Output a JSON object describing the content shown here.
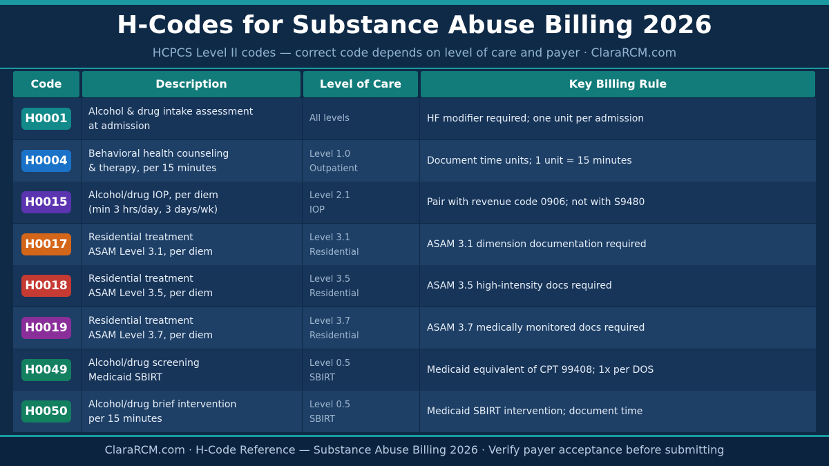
{
  "title": "H-Codes for Substance Abuse Billing 2026",
  "subtitle": "HCPCS Level II codes — correct code depends on level of care and payer  ·  ClaraRCM.com",
  "table": {
    "headers": [
      "Code",
      "Description",
      "Level of Care",
      "Key Billing Rule"
    ],
    "rows": [
      {
        "code": "H0001",
        "color": "#138a8a",
        "desc1": "Alcohol & drug intake assessment",
        "desc2": "at admission",
        "level1": "All levels",
        "level2": "",
        "rule": "HF modifier required; one unit per admission"
      },
      {
        "code": "H0004",
        "color": "#1a73c9",
        "desc1": "Behavioral health counseling",
        "desc2": "& therapy, per 15 minutes",
        "level1": "Level 1.0",
        "level2": "Outpatient",
        "rule": "Document time units; 1 unit = 15 minutes"
      },
      {
        "code": "H0015",
        "color": "#5b34b0",
        "desc1": "Alcohol/drug IOP, per diem",
        "desc2": "(min 3 hrs/day, 3 days/wk)",
        "level1": "Level 2.1",
        "level2": "IOP",
        "rule": "Pair with revenue code 0906; not with S9480"
      },
      {
        "code": "H0017",
        "color": "#d4661a",
        "desc1": "Residential treatment",
        "desc2": "ASAM Level 3.1, per diem",
        "level1": "Level 3.1",
        "level2": "Residential",
        "rule": "ASAM 3.1 dimension documentation required"
      },
      {
        "code": "H0018",
        "color": "#c53a32",
        "desc1": "Residential treatment",
        "desc2": "ASAM Level 3.5, per diem",
        "level1": "Level 3.5",
        "level2": "Residential",
        "rule": "ASAM 3.5 high-intensity docs required"
      },
      {
        "code": "H0019",
        "color": "#8a2e9a",
        "desc1": "Residential treatment",
        "desc2": "ASAM Level 3.7, per diem",
        "level1": "Level 3.7",
        "level2": "Residential",
        "rule": "ASAM 3.7 medically monitored docs required"
      },
      {
        "code": "H0049",
        "color": "#138060",
        "desc1": "Alcohol/drug screening",
        "desc2": "Medicaid SBIRT",
        "level1": "Level 0.5",
        "level2": "SBIRT",
        "rule": "Medicaid equivalent of CPT 99408; 1x per DOS"
      },
      {
        "code": "H0050",
        "color": "#138060",
        "desc1": "Alcohol/drug brief intervention",
        "desc2": "per 15 minutes",
        "level1": "Level 0.5",
        "level2": "SBIRT",
        "rule": "Medicaid SBIRT intervention; document time"
      }
    ]
  },
  "footer": "ClaraRCM.com  ·  H-Code Reference — Substance Abuse Billing 2026  ·  Verify payer acceptance before submitting"
}
